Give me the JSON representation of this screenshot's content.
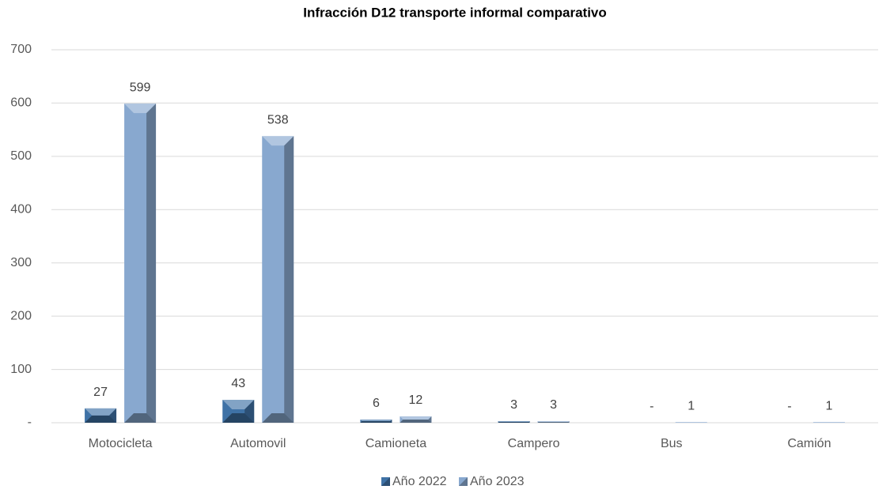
{
  "chart_data": {
    "type": "bar",
    "title": "Infracción D12 transporte informal comparativo",
    "categories": [
      "Motocicleta",
      "Automovil",
      "Camioneta",
      "Campero",
      "Bus",
      "Camión"
    ],
    "series": [
      {
        "name": "Año 2022",
        "color": "#3f72a6",
        "values": [
          27,
          43,
          6,
          3,
          0,
          0
        ],
        "value_labels": [
          "27",
          "43",
          "6",
          "3",
          "-",
          "-"
        ]
      },
      {
        "name": "Año 2023",
        "color": "#88a8cf",
        "values": [
          599,
          538,
          12,
          3,
          1,
          1
        ]
      }
    ],
    "ylim": [
      0,
      700
    ],
    "yticks": [
      {
        "value": 0,
        "label": "-"
      },
      100,
      200,
      300,
      400,
      500,
      600,
      700
    ],
    "grid": true,
    "legend": "bottom"
  }
}
